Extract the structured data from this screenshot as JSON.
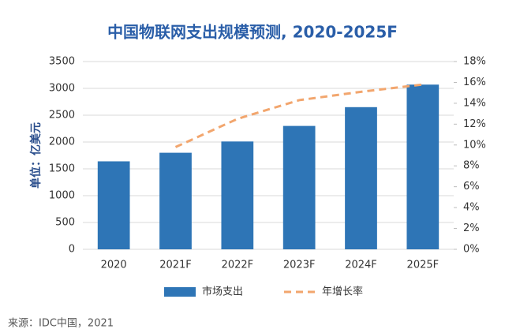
{
  "chart_data": {
    "type": "bar",
    "title": "中国物联网支出规模预测, 2020-2025F",
    "y_label": "单位：亿美元",
    "categories": [
      "2020",
      "2021F",
      "2022F",
      "2023F",
      "2024F",
      "2025F"
    ],
    "series": [
      {
        "name": "市场支出",
        "color": "#2e75b6",
        "values": [
          1640,
          1800,
          2010,
          2300,
          2650,
          3070
        ]
      },
      {
        "name": "年增长率",
        "color": "#f2a66e",
        "axis": "y2",
        "values": [
          null,
          9.8,
          12.5,
          14.3,
          15.1,
          15.8
        ]
      }
    ],
    "ylim": [
      0,
      3500
    ],
    "yticks": [
      0,
      500,
      1000,
      1500,
      2000,
      2500,
      3000,
      3500
    ],
    "y2lim": [
      0,
      18
    ],
    "y2ticks": [
      {
        "value": 0,
        "label": "0%"
      },
      {
        "value": 2,
        "label": "2%"
      },
      {
        "value": 4,
        "label": "4%"
      },
      {
        "value": 6,
        "label": "6%"
      },
      {
        "value": 8,
        "label": "8%"
      },
      {
        "value": 10,
        "label": "10%"
      },
      {
        "value": 12,
        "label": "12%"
      },
      {
        "value": 14,
        "label": "14%"
      },
      {
        "value": 16,
        "label": "16%"
      },
      {
        "value": 18,
        "label": "18%"
      }
    ],
    "grid": true,
    "source": "来源：IDC中国，2021"
  }
}
